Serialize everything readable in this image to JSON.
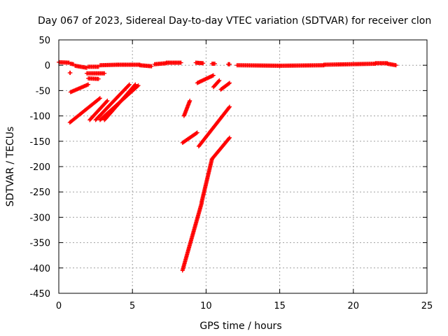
{
  "chart_data": {
    "type": "scatter",
    "title": "Day 067 of 2023, Sidereal Day-to-day VTEC variation (SDTVAR) for receiver clon",
    "xlabel": "GPS time / hours",
    "ylabel": "SDTVAR / TECUs",
    "xlim": [
      0,
      25
    ],
    "ylim": [
      -450,
      50
    ],
    "xticks": [
      "0",
      "5",
      "10",
      "15",
      "20",
      "25"
    ],
    "yticks": [
      "50",
      "0",
      "-50",
      "-100",
      "-150",
      "-200",
      "-250",
      "-300",
      "-350",
      "-400",
      "-450"
    ],
    "grid": true,
    "marker": "+",
    "marker_color": "#ff0000",
    "series": [
      {
        "segments": [
          [
            [
              0.0,
              6
            ],
            [
              0.7,
              5
            ]
          ],
          [
            [
              0.8,
              3
            ],
            [
              1.0,
              2
            ]
          ],
          [
            [
              1.1,
              -1
            ],
            [
              1.9,
              -5
            ]
          ],
          [
            [
              2.0,
              -3
            ],
            [
              2.7,
              -3
            ]
          ],
          [
            [
              2.8,
              0
            ],
            [
              4.0,
              1
            ]
          ],
          [
            [
              4.0,
              1
            ],
            [
              5.5,
              1
            ]
          ],
          [
            [
              5.5,
              0
            ],
            [
              6.3,
              -2
            ]
          ],
          [
            [
              6.5,
              2
            ],
            [
              7.3,
              4
            ]
          ],
          [
            [
              7.3,
              5
            ],
            [
              8.3,
              5
            ]
          ],
          [
            [
              9.3,
              5
            ],
            [
              9.8,
              4
            ]
          ],
          [
            [
              10.4,
              3
            ],
            [
              10.6,
              3
            ]
          ],
          [
            [
              11.5,
              2
            ],
            [
              11.6,
              2
            ]
          ],
          [
            [
              12.1,
              0
            ],
            [
              15.0,
              -1
            ]
          ],
          [
            [
              15.0,
              -1
            ],
            [
              18.0,
              0
            ]
          ],
          [
            [
              18.0,
              1
            ],
            [
              21.5,
              3
            ]
          ],
          [
            [
              21.5,
              4
            ],
            [
              22.3,
              4
            ]
          ],
          [
            [
              22.3,
              3
            ],
            [
              22.9,
              0
            ]
          ],
          [
            [
              0.75,
              -15
            ],
            [
              0.78,
              -15
            ]
          ],
          [
            [
              1.9,
              -16
            ],
            [
              3.1,
              -16
            ]
          ],
          [
            [
              2.0,
              -26
            ],
            [
              2.7,
              -27
            ]
          ],
          [
            [
              0.8,
              -53
            ],
            [
              2.0,
              -38
            ]
          ],
          [
            [
              0.75,
              -113
            ],
            [
              2.8,
              -65
            ]
          ],
          [
            [
              2.1,
              -108
            ],
            [
              3.3,
              -70
            ]
          ],
          [
            [
              3.1,
              -108
            ],
            [
              5.2,
              -38
            ]
          ],
          [
            [
              2.5,
              -108
            ],
            [
              4.8,
              -38
            ]
          ],
          [
            [
              2.8,
              -108
            ],
            [
              5.4,
              -40
            ]
          ],
          [
            [
              8.4,
              -405
            ],
            [
              9.7,
              -272
            ]
          ],
          [
            [
              9.7,
              -270
            ],
            [
              10.4,
              -185
            ]
          ],
          [
            [
              10.4,
              -185
            ],
            [
              11.6,
              -143
            ]
          ],
          [
            [
              8.5,
              -100
            ],
            [
              8.9,
              -70
            ]
          ],
          [
            [
              8.4,
              -153
            ],
            [
              9.4,
              -133
            ]
          ],
          [
            [
              9.5,
              -160
            ],
            [
              11.6,
              -82
            ]
          ],
          [
            [
              9.4,
              -35
            ],
            [
              10.5,
              -20
            ]
          ],
          [
            [
              10.5,
              -43
            ],
            [
              10.9,
              -30
            ]
          ],
          [
            [
              11.0,
              -48
            ],
            [
              11.6,
              -35
            ]
          ]
        ]
      }
    ]
  }
}
